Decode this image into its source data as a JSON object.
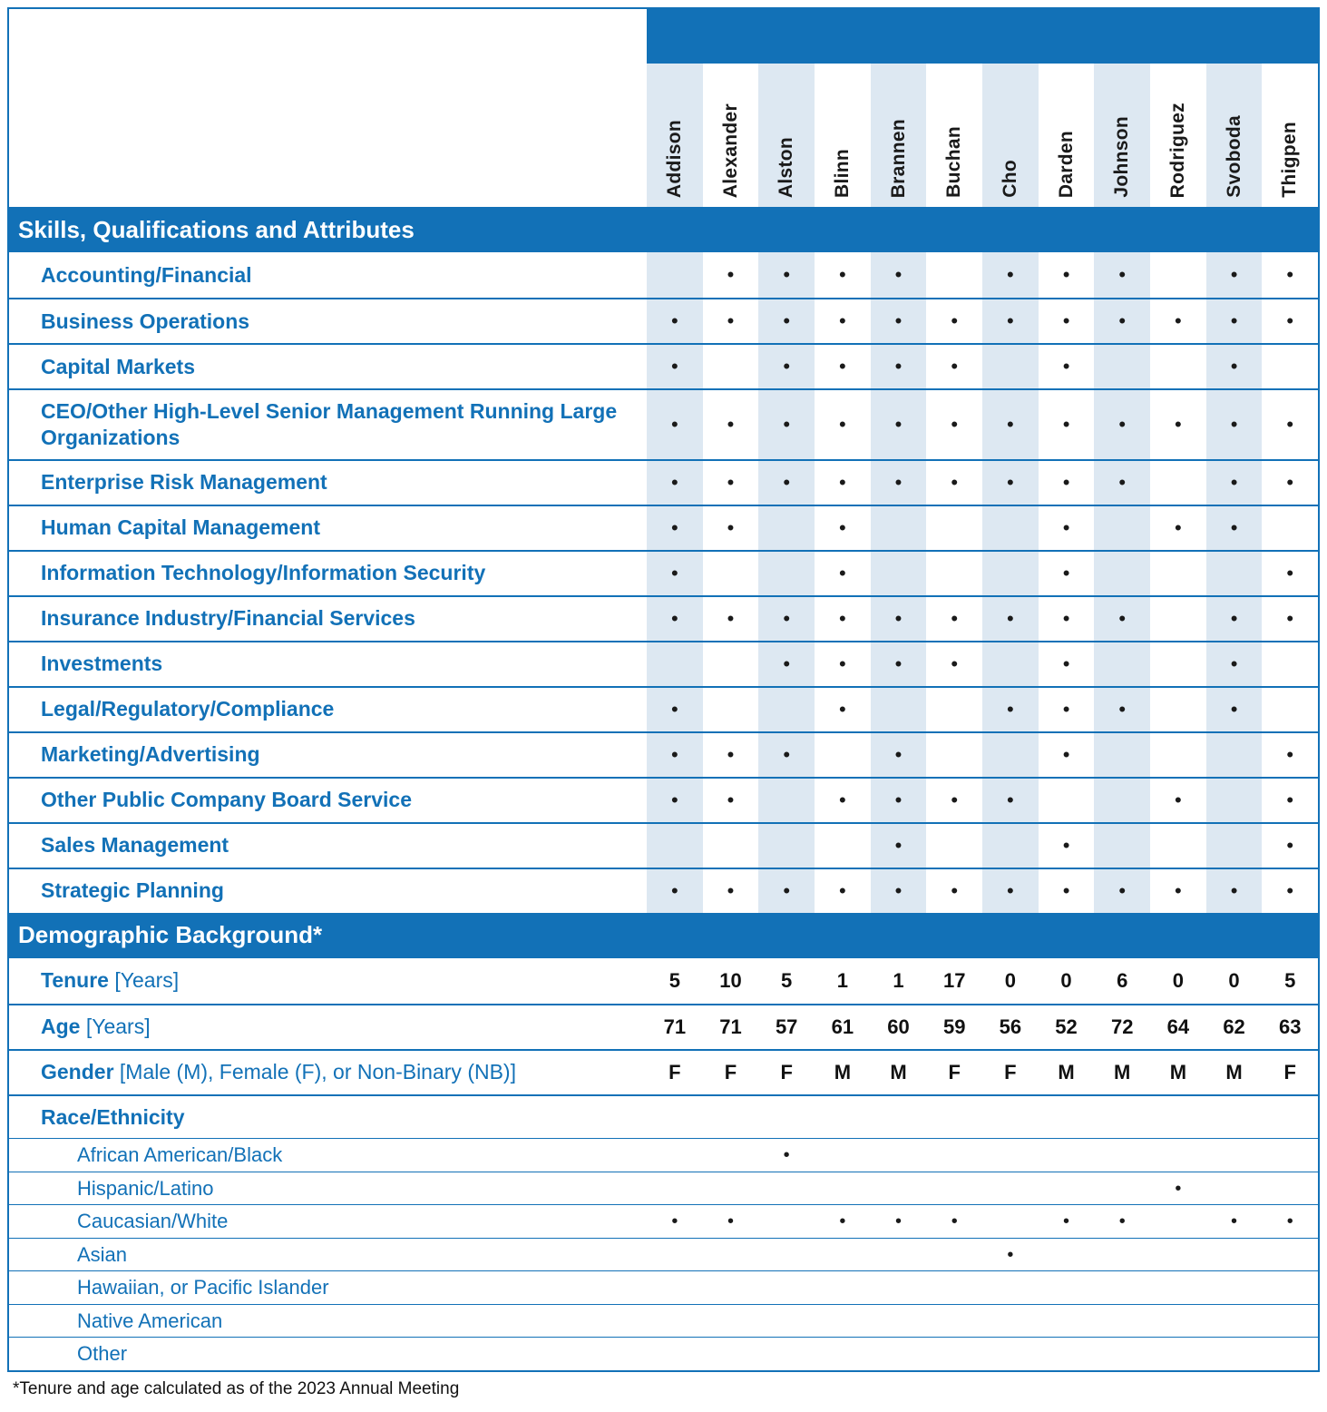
{
  "columns": [
    "Addison",
    "Alexander",
    "Alston",
    "Blinn",
    "Brannen",
    "Buchan",
    "Cho",
    "Darden",
    "Johnson",
    "Rodriguez",
    "Svoboda",
    "Thigpen"
  ],
  "mark_glyph": "•",
  "skills_section": {
    "header": "Skills, Qualifications and Attributes",
    "rows": [
      {
        "label": "Accounting/Financial",
        "marks": [
          0,
          1,
          1,
          1,
          1,
          0,
          1,
          1,
          1,
          0,
          1,
          1
        ]
      },
      {
        "label": "Business Operations",
        "marks": [
          1,
          1,
          1,
          1,
          1,
          1,
          1,
          1,
          1,
          1,
          1,
          1
        ]
      },
      {
        "label": "Capital Markets",
        "marks": [
          1,
          0,
          1,
          1,
          1,
          1,
          0,
          1,
          0,
          0,
          1,
          0
        ]
      },
      {
        "label": "CEO/Other High-Level Senior Management Running Large Organizations",
        "marks": [
          1,
          1,
          1,
          1,
          1,
          1,
          1,
          1,
          1,
          1,
          1,
          1
        ]
      },
      {
        "label": "Enterprise Risk Management",
        "marks": [
          1,
          1,
          1,
          1,
          1,
          1,
          1,
          1,
          1,
          0,
          1,
          1
        ]
      },
      {
        "label": "Human Capital Management",
        "marks": [
          1,
          1,
          0,
          1,
          0,
          0,
          0,
          1,
          0,
          1,
          1,
          0
        ]
      },
      {
        "label": "Information Technology/Information Security",
        "marks": [
          1,
          0,
          0,
          1,
          0,
          0,
          0,
          1,
          0,
          0,
          0,
          1
        ]
      },
      {
        "label": "Insurance Industry/Financial Services",
        "marks": [
          1,
          1,
          1,
          1,
          1,
          1,
          1,
          1,
          1,
          0,
          1,
          1
        ]
      },
      {
        "label": "Investments",
        "marks": [
          0,
          0,
          1,
          1,
          1,
          1,
          0,
          1,
          0,
          0,
          1,
          0
        ]
      },
      {
        "label": "Legal/Regulatory/Compliance",
        "marks": [
          1,
          0,
          0,
          1,
          0,
          0,
          1,
          1,
          1,
          0,
          1,
          0
        ]
      },
      {
        "label": "Marketing/Advertising",
        "marks": [
          1,
          1,
          1,
          0,
          1,
          0,
          0,
          1,
          0,
          0,
          0,
          1
        ]
      },
      {
        "label": "Other Public Company Board Service",
        "marks": [
          1,
          1,
          0,
          1,
          1,
          1,
          1,
          0,
          0,
          1,
          0,
          1
        ]
      },
      {
        "label": "Sales Management",
        "marks": [
          0,
          0,
          0,
          0,
          1,
          0,
          0,
          1,
          0,
          0,
          0,
          1
        ]
      },
      {
        "label": "Strategic Planning",
        "marks": [
          1,
          1,
          1,
          1,
          1,
          1,
          1,
          1,
          1,
          1,
          1,
          1
        ]
      }
    ]
  },
  "demographics_section": {
    "header": "Demographic Background*",
    "value_rows": [
      {
        "label": "Tenure",
        "suffix": "[Years]",
        "values": [
          "5",
          "10",
          "5",
          "1",
          "1",
          "17",
          "0",
          "0",
          "6",
          "0",
          "0",
          "5"
        ]
      },
      {
        "label": "Age",
        "suffix": "[Years]",
        "values": [
          "71",
          "71",
          "57",
          "61",
          "60",
          "59",
          "56",
          "52",
          "72",
          "64",
          "62",
          "63"
        ]
      },
      {
        "label": "Gender",
        "suffix": "[Male (M), Female (F), or Non-Binary (NB)]",
        "values": [
          "F",
          "F",
          "F",
          "M",
          "M",
          "F",
          "F",
          "M",
          "M",
          "M",
          "M",
          "F"
        ]
      }
    ],
    "race_header": "Race/Ethnicity",
    "race_rows": [
      {
        "label": "African American/Black",
        "marks": [
          0,
          0,
          1,
          0,
          0,
          0,
          0,
          0,
          0,
          0,
          0,
          0
        ]
      },
      {
        "label": "Hispanic/Latino",
        "marks": [
          0,
          0,
          0,
          0,
          0,
          0,
          0,
          0,
          0,
          1,
          0,
          0
        ]
      },
      {
        "label": "Caucasian/White",
        "marks": [
          1,
          1,
          0,
          1,
          1,
          1,
          0,
          1,
          1,
          0,
          1,
          1
        ]
      },
      {
        "label": "Asian",
        "marks": [
          0,
          0,
          0,
          0,
          0,
          0,
          1,
          0,
          0,
          0,
          0,
          0
        ]
      },
      {
        "label": "Hawaiian, or Pacific Islander",
        "marks": [
          0,
          0,
          0,
          0,
          0,
          0,
          0,
          0,
          0,
          0,
          0,
          0
        ]
      },
      {
        "label": "Native American",
        "marks": [
          0,
          0,
          0,
          0,
          0,
          0,
          0,
          0,
          0,
          0,
          0,
          0
        ]
      },
      {
        "label": "Other",
        "marks": [
          0,
          0,
          0,
          0,
          0,
          0,
          0,
          0,
          0,
          0,
          0,
          0
        ]
      }
    ]
  },
  "footnote": "*Tenure and age calculated as of the 2023 Annual Meeting",
  "colors": {
    "band_blue": "#1271B7",
    "label_blue": "#1271B7",
    "stripe": "#DDE8F2",
    "mark": "#1A1A1A"
  }
}
